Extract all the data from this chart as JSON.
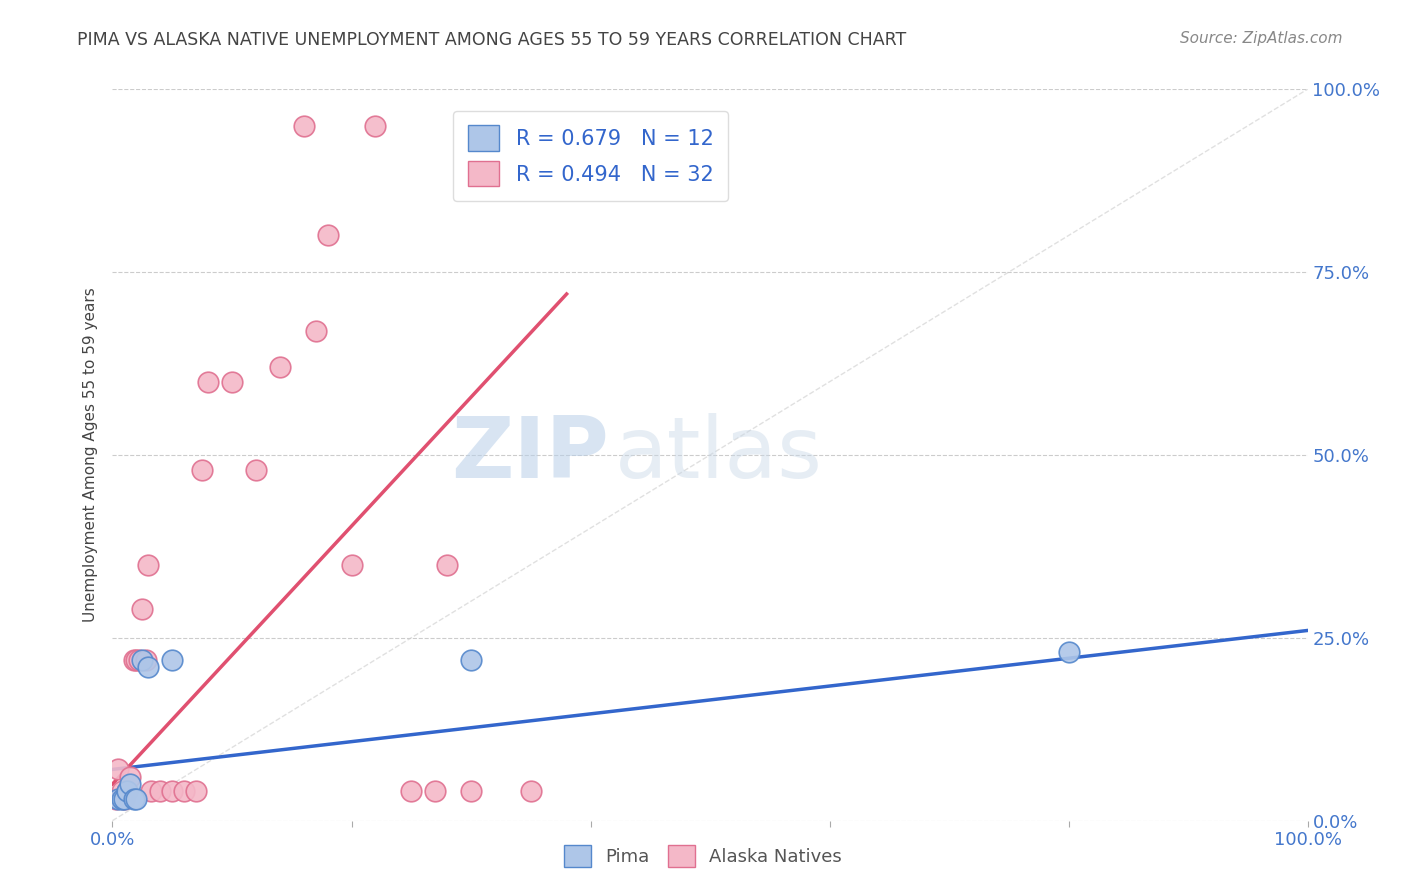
{
  "title": "PIMA VS ALASKA NATIVE UNEMPLOYMENT AMONG AGES 55 TO 59 YEARS CORRELATION CHART",
  "source": "Source: ZipAtlas.com",
  "ylabel": "Unemployment Among Ages 55 to 59 years",
  "watermark_zip": "ZIP",
  "watermark_atlas": "atlas",
  "pima_color": "#aec6e8",
  "alaska_color": "#f4b8c8",
  "pima_edge_color": "#5588cc",
  "alaska_edge_color": "#e07090",
  "pima_line_color": "#3366cc",
  "alaska_line_color": "#e05070",
  "diagonal_color": "#cccccc",
  "grid_color": "#cccccc",
  "pima_R": 0.679,
  "pima_N": 12,
  "alaska_R": 0.494,
  "alaska_N": 32,
  "title_color": "#444444",
  "axis_label_color": "#4477cc",
  "legend_text_color": "#3366cc",
  "pima_scatter_x": [
    0.005,
    0.008,
    0.01,
    0.012,
    0.015,
    0.018,
    0.02,
    0.025,
    0.03,
    0.05,
    0.3,
    0.8
  ],
  "pima_scatter_y": [
    0.03,
    0.03,
    0.03,
    0.04,
    0.05,
    0.03,
    0.03,
    0.22,
    0.21,
    0.22,
    0.22,
    0.23
  ],
  "alaska_scatter_x": [
    0.003,
    0.005,
    0.008,
    0.01,
    0.012,
    0.015,
    0.018,
    0.02,
    0.022,
    0.025,
    0.028,
    0.03,
    0.032,
    0.04,
    0.05,
    0.06,
    0.07,
    0.075,
    0.08,
    0.1,
    0.12,
    0.14,
    0.16,
    0.17,
    0.18,
    0.2,
    0.22,
    0.25,
    0.27,
    0.28,
    0.3,
    0.35
  ],
  "alaska_scatter_y": [
    0.03,
    0.07,
    0.04,
    0.03,
    0.04,
    0.06,
    0.22,
    0.22,
    0.22,
    0.29,
    0.22,
    0.35,
    0.04,
    0.04,
    0.04,
    0.04,
    0.04,
    0.48,
    0.6,
    0.6,
    0.48,
    0.62,
    0.95,
    0.67,
    0.8,
    0.35,
    0.95,
    0.04,
    0.04,
    0.35,
    0.04,
    0.04
  ],
  "pima_line_x0": 0.0,
  "pima_line_x1": 1.0,
  "pima_line_y0": 0.07,
  "pima_line_y1": 0.26,
  "alaska_line_x0": 0.0,
  "alaska_line_x1": 0.38,
  "alaska_line_y0": 0.05,
  "alaska_line_y1": 0.72,
  "xlim": [
    0.0,
    1.0
  ],
  "ylim": [
    0.0,
    1.0
  ],
  "xtick_positions": [
    0.0,
    0.2,
    0.4,
    0.6,
    0.8,
    1.0
  ],
  "ytick_positions": [
    0.0,
    0.25,
    0.5,
    0.75,
    1.0
  ],
  "right_yticklabels": [
    "0.0%",
    "25.0%",
    "50.0%",
    "75.0%",
    "100.0%"
  ],
  "bottom_xticklabels_left": "0.0%",
  "bottom_xticklabels_right": "100.0%"
}
